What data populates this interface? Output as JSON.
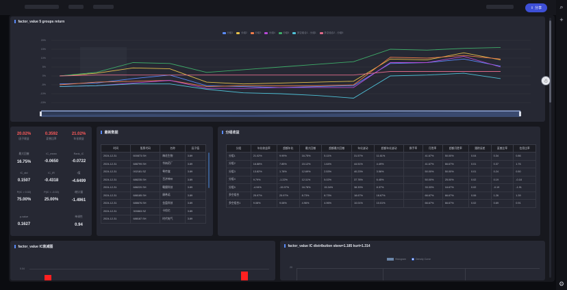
{
  "app": {
    "share_label": "分享",
    "colors": {
      "accent": "#3d4fd6",
      "panel": "#262833",
      "background": "#17181e"
    }
  },
  "line_panel": {
    "title": "factor_value 5 groups return",
    "chart_data": {
      "type": "line",
      "title": "",
      "y_tick_labels": [
        "20%",
        "15%",
        "10%",
        "5%",
        "0%",
        "-5%",
        "-10%",
        "-15%"
      ],
      "series": [
        {
          "name": "分组1",
          "color": "#5b8cff",
          "values": [
            -4.5,
            -4.0,
            -1.5,
            0.5,
            -5.5,
            -6.0,
            -6.5,
            -6.0,
            -5.5,
            7.0,
            7.5,
            9.5,
            5.5
          ]
        },
        {
          "name": "分组2",
          "color": "#e8c14a",
          "values": [
            0,
            1.5,
            4.5,
            4.0,
            -3.5,
            -4.5,
            -4.0,
            -3.5,
            -3.0,
            9.5,
            9.0,
            13.0,
            9.0
          ]
        },
        {
          "name": "分组3",
          "color": "#f07c4a",
          "values": [
            -5.0,
            -3.5,
            -3.0,
            -2.5,
            -6.0,
            -5.5,
            -5.5,
            -5.5,
            -5.0,
            10.5,
            10.0,
            11.5,
            9.5
          ]
        },
        {
          "name": "分组4",
          "color": "#b84ad8",
          "values": [
            -6.0,
            -5.5,
            -4.0,
            -2.5,
            -7.0,
            -7.0,
            -6.5,
            -6.5,
            -6.5,
            7.5,
            7.5,
            11.0,
            5.0
          ]
        },
        {
          "name": "分组5",
          "color": "#3fae6a",
          "values": [
            0,
            2.0,
            7.5,
            7.0,
            2.0,
            3.5,
            5.0,
            6.5,
            8.0,
            15.0,
            14.5,
            15.5,
            16.0
          ]
        },
        {
          "name": "多空组合1 - 分组1",
          "color": "#4fc3d9",
          "values": [
            -6.0,
            -5.5,
            -4.5,
            -4.5,
            -7.5,
            -9.5,
            -10.0,
            -11.0,
            -12.5,
            0,
            0.5,
            1.5,
            -1.5
          ]
        },
        {
          "name": "多空组合2 - 分组5",
          "color": "#e06a8a",
          "values": [
            0,
            0.5,
            0.5,
            0.5,
            0.5,
            0.5,
            0.5,
            0.5,
            0.5,
            2.5,
            2.5,
            2.5,
            2.5
          ]
        }
      ],
      "grid": true,
      "legend_position": "top-center"
    }
  },
  "metrics": {
    "items": [
      {
        "value": "20.02%",
        "label": "因子收益",
        "red": true
      },
      {
        "value": "0.3592",
        "label": "夏普比率",
        "red": true
      },
      {
        "value": "21.02%",
        "label": "年化收益",
        "red": true
      },
      {
        "value": "16.75%",
        "label": "最大回撤",
        "red": false
      },
      {
        "value": "-0.0650",
        "label": "IC_mean",
        "red": false
      },
      {
        "value": "-0.0722",
        "label": "Rank_IC",
        "red": false
      },
      {
        "value": "0.1507",
        "label": "IC_std",
        "red": false
      },
      {
        "value": "-0.4318",
        "label": "IC_IR",
        "red": false
      },
      {
        "value": "-4.6499",
        "label": "t值",
        "red": false
      },
      {
        "value": "75.00%",
        "label": "P(IC > 0.02)",
        "red": false
      },
      {
        "value": "25.00%",
        "label": "P(IC < -0.02)",
        "red": false
      },
      {
        "value": "-1.4961",
        "label": "t统计量",
        "red": false
      },
      {
        "value": "0.1627",
        "label": "p-value",
        "red": false
      },
      {
        "value": "0.94",
        "label": "单调性",
        "red": false
      }
    ]
  },
  "latest": {
    "title": "最新数据",
    "columns": [
      "时间",
      "股票代码",
      "名称",
      "因子值"
    ],
    "rows": [
      [
        "2024-12-31",
        "600873.SH",
        "梅花生物",
        "3.89"
      ],
      [
        "2024-12-31",
        "688799.SH",
        "华纳药厂",
        "3.89"
      ],
      [
        "2024-12-31",
        "002181.SZ",
        "粤传媒",
        "3.89"
      ],
      [
        "2024-12-31",
        "688235.SH",
        "百济神州",
        "3.89"
      ],
      [
        "2024-12-31",
        "688220.SH",
        "翱捷科技",
        "3.89"
      ],
      [
        "2024-12-31",
        "688185.SH",
        "康希诺",
        "3.89"
      ],
      [
        "2024-12-31",
        "688676.SH",
        "金盘科技",
        "3.89"
      ],
      [
        "2024-12-31",
        "300863.SZ",
        "卡倍亿",
        "3.89"
      ],
      [
        "2024-12-31",
        "688187.SH",
        "时代电气",
        "3.89"
      ]
    ]
  },
  "groups": {
    "title": "分组收益",
    "columns": [
      "分组",
      "年化收益率",
      "超额年化",
      "最大回撤",
      "超额最大回撤",
      "年化波动",
      "超额年化波动",
      "换手率",
      "月胜率",
      "超额月胜率",
      "跟踪误差",
      "夏普比率",
      "信息比率"
    ],
    "rows": [
      [
        "分组1",
        "21.02%",
        "9.99%",
        "16.75%",
        "5.11%",
        "31.57%",
        "11.61%",
        "",
        "41.67%",
        "50.00%",
        "0.04",
        "0.34",
        "0.86"
      ],
      [
        "分组2",
        "16.88%",
        "7.85%",
        "15.12%",
        "1.64%",
        "44.51%",
        "4.49%",
        "",
        "41.67%",
        "66.67%",
        "0.01",
        "0.37",
        "1.76"
      ],
      [
        "分组3",
        "13.82%",
        "1.78%",
        "12.69%",
        "2.53%",
        "40.23%",
        "3.56%",
        "",
        "50.00%",
        "50.00%",
        "0.01",
        "0.24",
        "0.50"
      ],
      [
        "分组4",
        "9.79%",
        "-1.22%",
        "12.11%",
        "5.02%",
        "37.78%",
        "6.45%",
        "",
        "50.00%",
        "25.00%",
        "0.02",
        "0.19",
        "-0.18"
      ],
      [
        "分组5",
        "-4.94%",
        "-15.97%",
        "16.78%",
        "15.34%",
        "38.33%",
        "8.37%",
        "",
        "33.33%",
        "16.67%",
        "0.02",
        "-0.19",
        "-1.91"
      ],
      [
        "多空组合",
        "25.97%",
        "25.97%",
        "8.73%",
        "8.73%",
        "18.67%",
        "18.67%",
        "",
        "66.67%",
        "66.67%",
        "0.06",
        "1.26",
        "1.39"
      ],
      [
        "多空组合1",
        "9.08%",
        "9.08%",
        "4.96%",
        "4.96%",
        "10.01%",
        "10.01%",
        "",
        "66.67%",
        "66.67%",
        "0.02",
        "0.69",
        "0.91"
      ]
    ]
  },
  "ic_decay": {
    "title": "factor_value IC衰减图",
    "y_tick": "0.04"
  },
  "ic_dist": {
    "title": "factor_value IC distribution skew=1.185 kurt=1.314",
    "legend": [
      "Histogram",
      "Density Curve"
    ],
    "y_tick": "20"
  }
}
